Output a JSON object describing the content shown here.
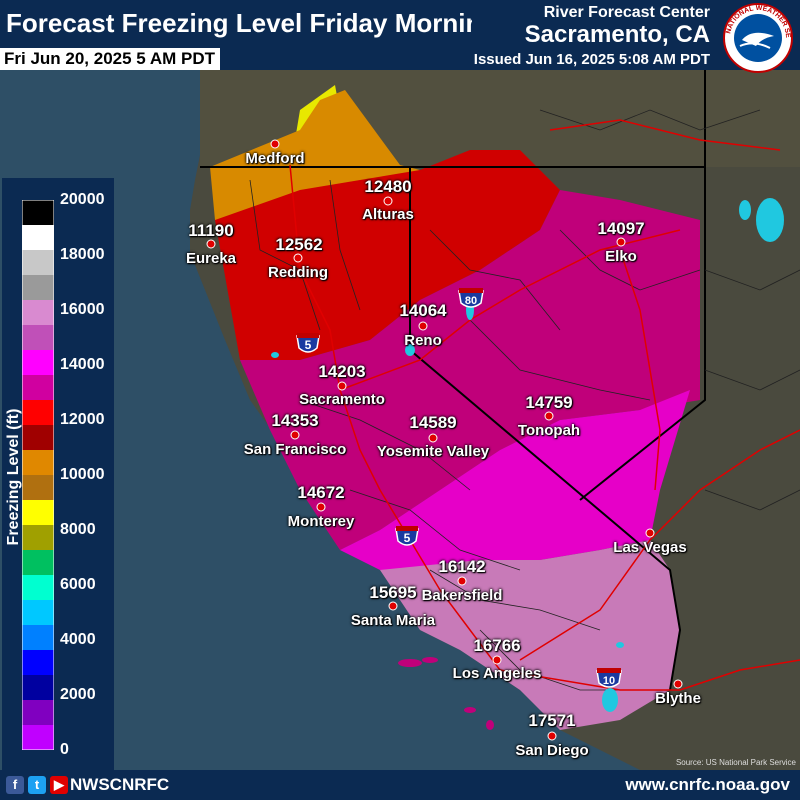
{
  "header": {
    "title": "Forecast Freezing Level Friday Morning",
    "valid_time": "Fri Jun 20, 2025 5 AM PDT",
    "center": "River Forecast Center",
    "office": "Sacramento, CA",
    "issued": "Issued Jun 16, 2025 5:08 AM PDT",
    "logo_text": "NATIONAL WEATHER SERVICE"
  },
  "legend": {
    "title": "Freezing Level (ft)",
    "ticks": [
      "20000",
      "18000",
      "16000",
      "14000",
      "12000",
      "10000",
      "8000",
      "6000",
      "4000",
      "2000",
      "0"
    ],
    "colors": [
      "#000000",
      "#ffffff",
      "#c8c8c8",
      "#9a9a9a",
      "#d98ad0",
      "#c050b8",
      "#ff00ff",
      "#d000a0",
      "#ff0000",
      "#a00000",
      "#e08800",
      "#b07010",
      "#ffff00",
      "#a0a000",
      "#00c060",
      "#00ffd0",
      "#00c8ff",
      "#0080ff",
      "#0000ff",
      "#0000a0",
      "#8000c0",
      "#c000ff"
    ]
  },
  "cities": [
    {
      "name": "Medford",
      "value": ""
    },
    {
      "name": "Alturas",
      "value": "12480"
    },
    {
      "name": "Eureka",
      "value": "11190"
    },
    {
      "name": "Redding",
      "value": "12562"
    },
    {
      "name": "Elko",
      "value": "14097"
    },
    {
      "name": "Reno",
      "value": "14064"
    },
    {
      "name": "Sacramento",
      "value": "14203"
    },
    {
      "name": "San Francisco",
      "value": "14353"
    },
    {
      "name": "Yosemite Valley",
      "value": "14589"
    },
    {
      "name": "Tonopah",
      "value": "14759"
    },
    {
      "name": "Monterey",
      "value": "14672"
    },
    {
      "name": "Las Vegas",
      "value": ""
    },
    {
      "name": "Bakersfield",
      "value": "16142"
    },
    {
      "name": "Santa Maria",
      "value": "15695"
    },
    {
      "name": "Los Angeles",
      "value": "16766"
    },
    {
      "name": "Blythe",
      "value": ""
    },
    {
      "name": "San Diego",
      "value": "17571"
    }
  ],
  "highways": {
    "i80": "80",
    "i5_north": "5",
    "i5_south": "5",
    "i10": "10"
  },
  "map_colors": {
    "ocean": "#2e4f66",
    "land": "#4a4a3e",
    "yellow": "#e8e800",
    "orange": "#d88a00",
    "red": "#d00000",
    "magenta_dark": "#c0007a",
    "magenta": "#e600c8",
    "magenta_light": "#c87ab8",
    "pink": "#d060c0"
  },
  "source": "Source: US National Park Service",
  "footer": {
    "handle": "NWSCNRFC",
    "website": "www.cnrfc.noaa.gov",
    "social_icons": [
      "facebook-icon",
      "twitter-icon",
      "youtube-icon"
    ]
  }
}
